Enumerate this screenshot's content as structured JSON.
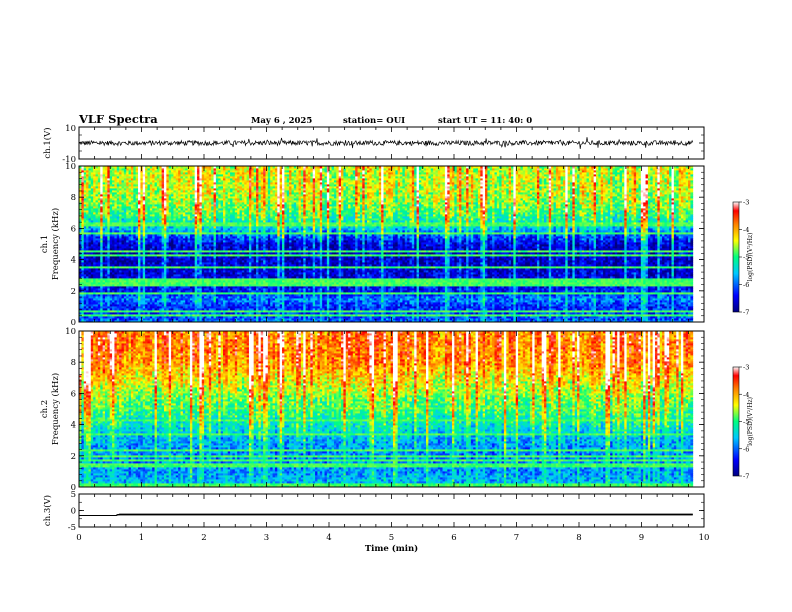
{
  "header": {
    "title": "VLF Spectra",
    "date": "May 6  , 2025",
    "station": "station= OUI",
    "start_ut": "start  UT  =   11: 40: 0"
  },
  "chart_data": [
    {
      "type": "line",
      "name": "ch1-waveform",
      "ylabel": "ch.1(V)",
      "ylim": [
        -10,
        10
      ],
      "yticks": [
        "10",
        "-10"
      ],
      "xlim": [
        0,
        10
      ],
      "series": [
        {
          "x_range": [
            0,
            9.82
          ],
          "baseline": 0,
          "amplitude_typical": 1.5
        }
      ]
    },
    {
      "type": "heatmap",
      "name": "ch1-spectrogram",
      "ylabel": "ch.1\nFrequency  (kHz)",
      "ylim": [
        0,
        10
      ],
      "yticks": [
        "0",
        "2",
        "4",
        "6",
        "8",
        "10"
      ],
      "xlim": [
        0,
        10
      ],
      "data_x_end": 9.82,
      "colorbar": {
        "label": "log(PSD)(V²/Hz)",
        "range": [
          -7,
          -3
        ],
        "ticks": [
          "-3",
          "-4",
          "-5",
          "-6",
          "-7"
        ]
      },
      "profile": [
        {
          "f": 0,
          "v": -6.0
        },
        {
          "f": 0.5,
          "v": -6.2
        },
        {
          "f": 1,
          "v": -6.3
        },
        {
          "f": 1.5,
          "v": -5.9
        },
        {
          "f": 2,
          "v": -6.4
        },
        {
          "f": 3,
          "v": -6.6
        },
        {
          "f": 4,
          "v": -6.7
        },
        {
          "f": 5,
          "v": -6.6
        },
        {
          "f": 5.5,
          "v": -6.1
        },
        {
          "f": 6,
          "v": -5.6
        },
        {
          "f": 6.5,
          "v": -5.2
        },
        {
          "f": 7,
          "v": -4.9
        },
        {
          "f": 8,
          "v": -4.6
        },
        {
          "f": 9,
          "v": -4.5
        },
        {
          "f": 10,
          "v": -4.5
        }
      ]
    },
    {
      "type": "heatmap",
      "name": "ch2-spectrogram",
      "ylabel": "ch.2\nFrequency  (kHz)",
      "ylim": [
        0,
        10
      ],
      "yticks": [
        "0",
        "2",
        "4",
        "6",
        "8",
        "10"
      ],
      "xlim": [
        0,
        10
      ],
      "data_x_end": 9.82,
      "colorbar": {
        "label": "log(PSD)(V²/Hz)",
        "range": [
          -7,
          -3
        ],
        "ticks": [
          "-3",
          "-4",
          "-5",
          "-6",
          "-7"
        ]
      },
      "profile": [
        {
          "f": 0,
          "v": -5.6
        },
        {
          "f": 1,
          "v": -5.8
        },
        {
          "f": 2,
          "v": -5.9
        },
        {
          "f": 3,
          "v": -5.7
        },
        {
          "f": 4,
          "v": -5.3
        },
        {
          "f": 5,
          "v": -5.0
        },
        {
          "f": 6,
          "v": -4.7
        },
        {
          "f": 7,
          "v": -4.3
        },
        {
          "f": 8,
          "v": -3.9
        },
        {
          "f": 9,
          "v": -3.8
        },
        {
          "f": 10,
          "v": -3.8
        }
      ]
    },
    {
      "type": "line",
      "name": "ch3-trace",
      "ylabel": "ch.3(V)",
      "ylim": [
        -5,
        5
      ],
      "yticks": [
        "5",
        "0",
        "-5"
      ],
      "xlim": [
        0,
        10
      ],
      "xlabel": "Time  (min)",
      "xticks": [
        "0",
        "1",
        "2",
        "3",
        "4",
        "5",
        "6",
        "7",
        "8",
        "9",
        "10"
      ],
      "series": [
        {
          "x": [
            0,
            0.6,
            0.65,
            9.82
          ],
          "y": [
            -1.5,
            -1.5,
            -1.1,
            -1.1
          ]
        }
      ]
    }
  ],
  "colors": {
    "frame": "#000000",
    "colormap": [
      "#000080",
      "#0000ff",
      "#00c8ff",
      "#00ff80",
      "#ffff00",
      "#ff8000",
      "#ff0000",
      "#ffffff"
    ]
  }
}
